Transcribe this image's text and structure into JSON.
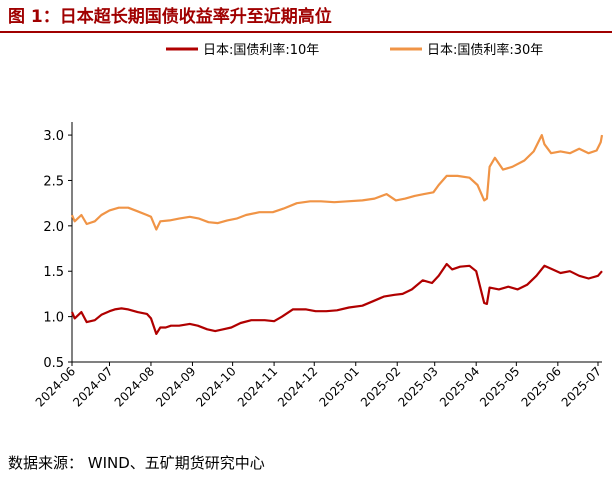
{
  "figure": {
    "title": "图 1：日本超长期国债收益率升至近期高位",
    "source": "数据来源：  WIND、五矿期货研究中心"
  },
  "colors": {
    "title": "#a00000",
    "rule": "#a00000",
    "series_10y": "#b00000",
    "series_30y": "#f09446"
  },
  "chart_data": {
    "type": "line",
    "title": "",
    "xlabel": "",
    "ylabel": "",
    "x_ticks": [
      "2024-06",
      "2024-07",
      "2024-08",
      "2024-09",
      "2024-10",
      "2024-11",
      "2024-12",
      "2025-01",
      "2025-02",
      "2025-03",
      "2025-04",
      "2025-05",
      "2025-06",
      "2025-07"
    ],
    "y_ticks": [
      "0.5",
      "1.0",
      "1.5",
      "2.0",
      "2.5",
      "3.0"
    ],
    "ylim": [
      0.5,
      3.1
    ],
    "xlim": [
      "2024-06-03",
      "2025-07-04"
    ],
    "grid": false,
    "legend": "top",
    "series": [
      {
        "name": "日本:国债利率:10年",
        "color": "#b00000",
        "points": [
          [
            "2024-06-03",
            1.05
          ],
          [
            "2024-06-05",
            0.98
          ],
          [
            "2024-06-10",
            1.05
          ],
          [
            "2024-06-14",
            0.94
          ],
          [
            "2024-06-20",
            0.96
          ],
          [
            "2024-06-25",
            1.02
          ],
          [
            "2024-07-01",
            1.06
          ],
          [
            "2024-07-05",
            1.08
          ],
          [
            "2024-07-10",
            1.09
          ],
          [
            "2024-07-15",
            1.08
          ],
          [
            "2024-07-22",
            1.05
          ],
          [
            "2024-07-29",
            1.03
          ],
          [
            "2024-08-01",
            0.98
          ],
          [
            "2024-08-05",
            0.81
          ],
          [
            "2024-08-08",
            0.88
          ],
          [
            "2024-08-12",
            0.88
          ],
          [
            "2024-08-16",
            0.9
          ],
          [
            "2024-08-22",
            0.9
          ],
          [
            "2024-08-30",
            0.92
          ],
          [
            "2024-09-05",
            0.9
          ],
          [
            "2024-09-12",
            0.86
          ],
          [
            "2024-09-18",
            0.84
          ],
          [
            "2024-09-24",
            0.86
          ],
          [
            "2024-09-30",
            0.88
          ],
          [
            "2024-10-07",
            0.93
          ],
          [
            "2024-10-15",
            0.96
          ],
          [
            "2024-10-25",
            0.96
          ],
          [
            "2024-11-01",
            0.95
          ],
          [
            "2024-11-07",
            1.0
          ],
          [
            "2024-11-15",
            1.08
          ],
          [
            "2024-11-25",
            1.08
          ],
          [
            "2024-12-02",
            1.06
          ],
          [
            "2024-12-10",
            1.06
          ],
          [
            "2024-12-18",
            1.07
          ],
          [
            "2024-12-27",
            1.1
          ],
          [
            "2025-01-06",
            1.12
          ],
          [
            "2025-01-14",
            1.17
          ],
          [
            "2025-01-22",
            1.22
          ],
          [
            "2025-01-30",
            1.24
          ],
          [
            "2025-02-05",
            1.25
          ],
          [
            "2025-02-12",
            1.3
          ],
          [
            "2025-02-20",
            1.4
          ],
          [
            "2025-02-27",
            1.37
          ],
          [
            "2025-03-04",
            1.45
          ],
          [
            "2025-03-10",
            1.58
          ],
          [
            "2025-03-14",
            1.52
          ],
          [
            "2025-03-20",
            1.55
          ],
          [
            "2025-03-27",
            1.56
          ],
          [
            "2025-04-01",
            1.5
          ],
          [
            "2025-04-07",
            1.15
          ],
          [
            "2025-04-09",
            1.14
          ],
          [
            "2025-04-11",
            1.32
          ],
          [
            "2025-04-18",
            1.3
          ],
          [
            "2025-04-25",
            1.33
          ],
          [
            "2025-05-02",
            1.3
          ],
          [
            "2025-05-09",
            1.35
          ],
          [
            "2025-05-16",
            1.45
          ],
          [
            "2025-05-22",
            1.56
          ],
          [
            "2025-05-28",
            1.52
          ],
          [
            "2025-06-03",
            1.48
          ],
          [
            "2025-06-10",
            1.5
          ],
          [
            "2025-06-17",
            1.45
          ],
          [
            "2025-06-24",
            1.42
          ],
          [
            "2025-07-01",
            1.45
          ],
          [
            "2025-07-04",
            1.5
          ]
        ]
      },
      {
        "name": "日本:国债利率:30年",
        "color": "#f09446",
        "points": [
          [
            "2024-06-03",
            2.12
          ],
          [
            "2024-06-05",
            2.05
          ],
          [
            "2024-06-10",
            2.12
          ],
          [
            "2024-06-14",
            2.02
          ],
          [
            "2024-06-20",
            2.05
          ],
          [
            "2024-06-25",
            2.12
          ],
          [
            "2024-07-01",
            2.17
          ],
          [
            "2024-07-08",
            2.2
          ],
          [
            "2024-07-15",
            2.2
          ],
          [
            "2024-07-22",
            2.16
          ],
          [
            "2024-07-29",
            2.12
          ],
          [
            "2024-08-01",
            2.1
          ],
          [
            "2024-08-05",
            1.96
          ],
          [
            "2024-08-08",
            2.05
          ],
          [
            "2024-08-15",
            2.06
          ],
          [
            "2024-08-22",
            2.08
          ],
          [
            "2024-08-30",
            2.1
          ],
          [
            "2024-09-06",
            2.08
          ],
          [
            "2024-09-13",
            2.04
          ],
          [
            "2024-09-20",
            2.03
          ],
          [
            "2024-09-27",
            2.06
          ],
          [
            "2024-10-04",
            2.08
          ],
          [
            "2024-10-11",
            2.12
          ],
          [
            "2024-10-21",
            2.15
          ],
          [
            "2024-10-31",
            2.15
          ],
          [
            "2024-11-08",
            2.19
          ],
          [
            "2024-11-18",
            2.25
          ],
          [
            "2024-11-28",
            2.27
          ],
          [
            "2024-12-06",
            2.27
          ],
          [
            "2024-12-16",
            2.26
          ],
          [
            "2024-12-26",
            2.27
          ],
          [
            "2025-01-06",
            2.28
          ],
          [
            "2025-01-15",
            2.3
          ],
          [
            "2025-01-24",
            2.35
          ],
          [
            "2025-01-31",
            2.28
          ],
          [
            "2025-02-07",
            2.3
          ],
          [
            "2025-02-14",
            2.33
          ],
          [
            "2025-02-21",
            2.35
          ],
          [
            "2025-02-28",
            2.37
          ],
          [
            "2025-03-04",
            2.45
          ],
          [
            "2025-03-10",
            2.55
          ],
          [
            "2025-03-18",
            2.55
          ],
          [
            "2025-03-27",
            2.53
          ],
          [
            "2025-04-02",
            2.45
          ],
          [
            "2025-04-07",
            2.28
          ],
          [
            "2025-04-09",
            2.3
          ],
          [
            "2025-04-11",
            2.65
          ],
          [
            "2025-04-15",
            2.75
          ],
          [
            "2025-04-21",
            2.62
          ],
          [
            "2025-04-28",
            2.65
          ],
          [
            "2025-05-07",
            2.72
          ],
          [
            "2025-05-14",
            2.82
          ],
          [
            "2025-05-20",
            3.0
          ],
          [
            "2025-05-22",
            2.9
          ],
          [
            "2025-05-27",
            2.8
          ],
          [
            "2025-06-03",
            2.82
          ],
          [
            "2025-06-10",
            2.8
          ],
          [
            "2025-06-17",
            2.85
          ],
          [
            "2025-06-24",
            2.8
          ],
          [
            "2025-06-30",
            2.83
          ],
          [
            "2025-07-03",
            2.92
          ],
          [
            "2025-07-04",
            3.0
          ]
        ]
      }
    ]
  }
}
